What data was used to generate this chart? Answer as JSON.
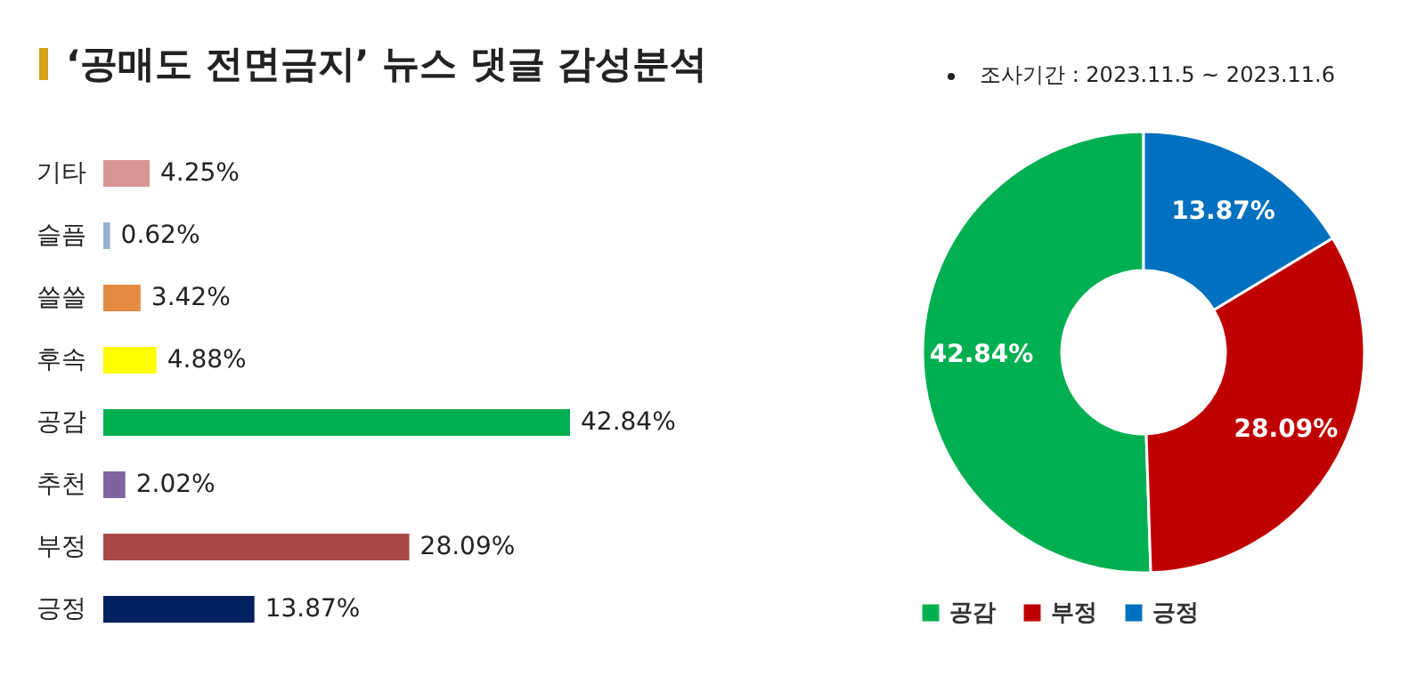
{
  "chart_data": [
    {
      "type": "bar",
      "orientation": "horizontal",
      "title": "‘공매도 전면금지’ 뉴스 댓글 감성분석",
      "categories": [
        "기타",
        "슬픔",
        "쓸쓸",
        "후속",
        "공감",
        "추천",
        "부정",
        "긍정"
      ],
      "values": [
        4.25,
        0.62,
        3.42,
        4.88,
        42.84,
        2.02,
        28.09,
        13.87
      ],
      "colors": [
        "#d99594",
        "#95b3d7",
        "#e38b44",
        "#ffff00",
        "#00b050",
        "#8064a2",
        "#a94848",
        "#002060"
      ],
      "value_labels": [
        "4.25%",
        "0.62%",
        "3.42%",
        "4.88%",
        "42.84%",
        "2.02%",
        "28.09%",
        "13.87%"
      ]
    },
    {
      "type": "donut",
      "annotations": [
        "조사기간 : 2023.11.5 ~ 2023.11.6"
      ],
      "categories": [
        "공감",
        "부정",
        "긍정"
      ],
      "values": [
        42.84,
        28.09,
        13.87
      ],
      "colors": [
        "#00b050",
        "#c00000",
        "#0070c0"
      ],
      "value_labels": [
        "42.84%",
        "28.09%",
        "13.87%"
      ],
      "legend": "bottom"
    }
  ]
}
